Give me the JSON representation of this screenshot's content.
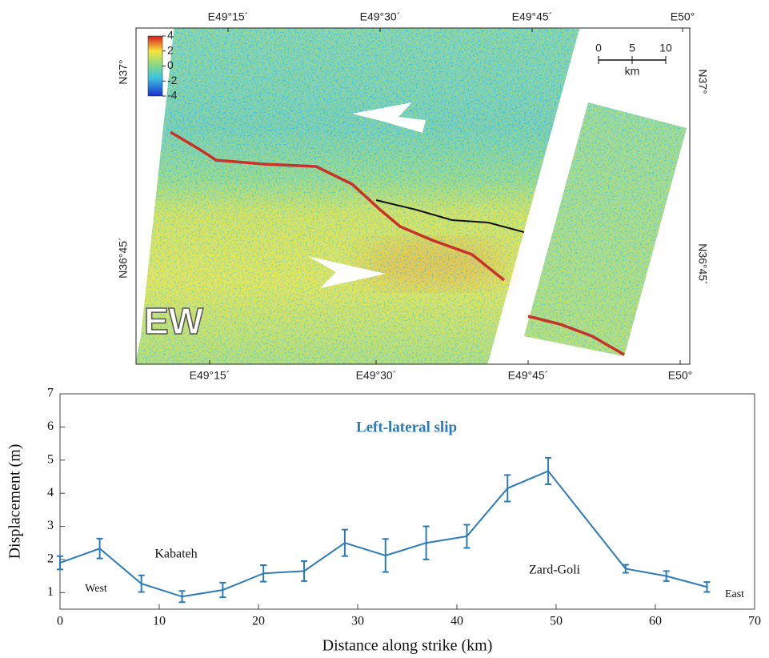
{
  "map": {
    "top_labels": [
      "E49°15´",
      "E49°30´",
      "E49°45´",
      "E50°"
    ],
    "bottom_labels": [
      "E49°15´",
      "E49°30´",
      "E49°45´",
      "E50°"
    ],
    "left_labels": [
      "N37°",
      "N36°45´"
    ],
    "right_labels": [
      "N37°",
      "N36°45´"
    ],
    "colorbar_ticks": [
      4,
      2,
      0,
      -2,
      -4
    ],
    "colorbar_lim": [
      -4,
      4
    ],
    "scale_ticks": [
      0,
      5,
      10
    ],
    "scale_unit": "km",
    "component": "EW"
  },
  "chart_data": {
    "type": "line",
    "title": "Left-lateral slip",
    "xlabel": "Distance along strike (km)",
    "ylabel": "Displacement (m)",
    "x": [
      0,
      4,
      8.2,
      12.3,
      16.4,
      20.5,
      24.6,
      28.7,
      32.8,
      36.9,
      41,
      45.1,
      49.2,
      57,
      61.1,
      65.2
    ],
    "values": [
      1.9,
      2.33,
      1.27,
      0.88,
      1.08,
      1.58,
      1.65,
      2.5,
      2.12,
      2.5,
      2.7,
      4.15,
      4.67,
      1.72,
      1.5,
      1.17
    ],
    "errors": [
      0.2,
      0.3,
      0.25,
      0.17,
      0.22,
      0.25,
      0.3,
      0.4,
      0.5,
      0.5,
      0.35,
      0.4,
      0.4,
      0.12,
      0.15,
      0.15
    ],
    "color": "#2b7bba",
    "xlim": [
      0,
      70
    ],
    "xticks": [
      0,
      10,
      20,
      30,
      40,
      50,
      60,
      70
    ],
    "ylim": [
      0.5,
      7
    ],
    "yticks": [
      1,
      2,
      3,
      4,
      5,
      6,
      7
    ],
    "annotations": [
      "Kabateh",
      "West",
      "Zard-Goli",
      "East"
    ]
  }
}
